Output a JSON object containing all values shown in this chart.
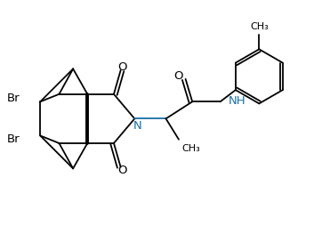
{
  "bg_color": "#ffffff",
  "line_color": "#000000",
  "n_color": "#1a6ea8",
  "figsize": [
    3.62,
    2.54
  ],
  "dpi": 100,
  "xlim": [
    0,
    8.5
  ],
  "ylim": [
    0.5,
    6.0
  ]
}
